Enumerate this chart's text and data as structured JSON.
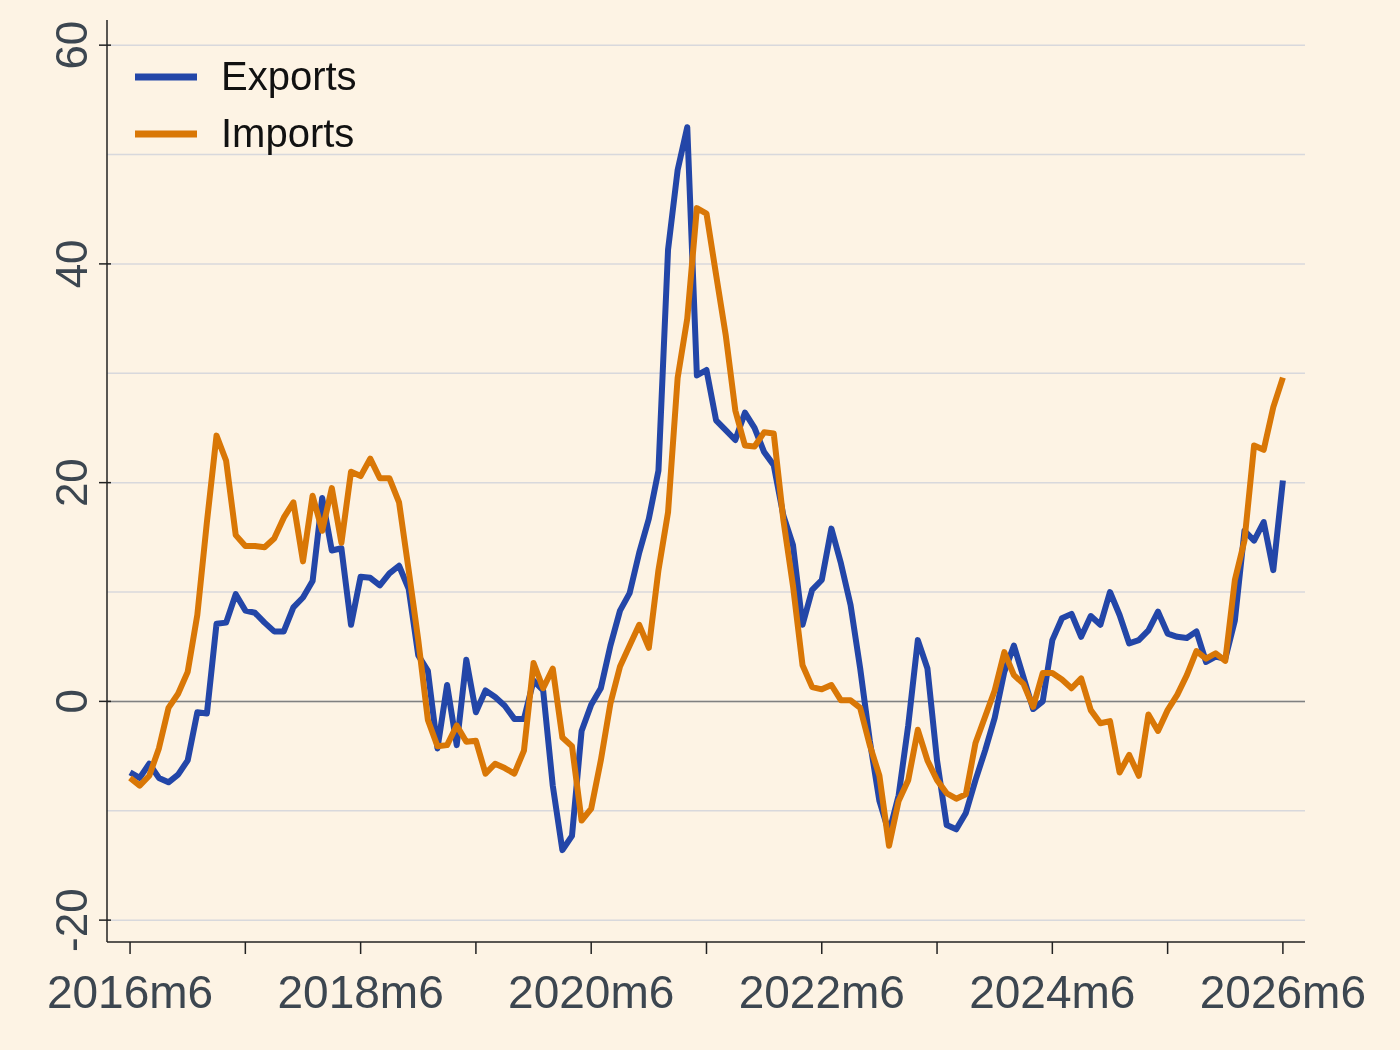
{
  "chart_data": {
    "type": "line",
    "xlim": [
      "2016-03-19",
      "2026-08-10"
    ],
    "ylim": [
      -22,
      62.3
    ],
    "xticks": [
      {
        "value": "2016-06",
        "label": "2016m6"
      },
      {
        "value": "2017-06",
        "label": null
      },
      {
        "value": "2018-06",
        "label": "2018m6"
      },
      {
        "value": "2019-06",
        "label": null
      },
      {
        "value": "2020-06",
        "label": "2020m6"
      },
      {
        "value": "2021-06",
        "label": null
      },
      {
        "value": "2022-06",
        "label": "2022m6"
      },
      {
        "value": "2023-06",
        "label": null
      },
      {
        "value": "2024-06",
        "label": "2024m6"
      },
      {
        "value": "2025-06",
        "label": null
      },
      {
        "value": "2026-06",
        "label": "2026m6"
      }
    ],
    "yticks": [
      -20,
      {
        "value": -10,
        "label": null
      },
      0,
      {
        "value": 10,
        "label": null
      },
      20,
      {
        "value": 30,
        "label": null
      },
      40,
      {
        "value": 50,
        "label": null
      },
      60
    ],
    "grid": "y",
    "legend": "top left",
    "marker": "none",
    "line_style": "solid",
    "ref_lines": [
      {
        "axis": "y",
        "value": 0,
        "color": "#808080"
      }
    ],
    "x": [
      "2016-06",
      "2016-07",
      "2016-08",
      "2016-09",
      "2016-10",
      "2016-11",
      "2016-12",
      "2017-01",
      "2017-02",
      "2017-03",
      "2017-04",
      "2017-05",
      "2017-06",
      "2017-07",
      "2017-08",
      "2017-09",
      "2017-10",
      "2017-11",
      "2017-12",
      "2018-01",
      "2018-02",
      "2018-03",
      "2018-04",
      "2018-05",
      "2018-06",
      "2018-07",
      "2018-08",
      "2018-09",
      "2018-10",
      "2018-11",
      "2018-12",
      "2019-01",
      "2019-02",
      "2019-03",
      "2019-04",
      "2019-05",
      "2019-06",
      "2019-07",
      "2019-08",
      "2019-09",
      "2019-10",
      "2019-11",
      "2019-12",
      "2020-01",
      "2020-02",
      "2020-03",
      "2020-04",
      "2020-05",
      "2020-06",
      "2020-07",
      "2020-08",
      "2020-09",
      "2020-10",
      "2020-11",
      "2020-12",
      "2021-01",
      "2021-02",
      "2021-03",
      "2021-04",
      "2021-05",
      "2021-06",
      "2021-07",
      "2021-08",
      "2021-09",
      "2021-10",
      "2021-11",
      "2021-12",
      "2022-01",
      "2022-02",
      "2022-03",
      "2022-04",
      "2022-05",
      "2022-06",
      "2022-07",
      "2022-08",
      "2022-09",
      "2022-10",
      "2022-11",
      "2022-12",
      "2023-01",
      "2023-02",
      "2023-03",
      "2023-04",
      "2023-05",
      "2023-06",
      "2023-07",
      "2023-08",
      "2023-09",
      "2023-10",
      "2023-11",
      "2023-12",
      "2024-01",
      "2024-02",
      "2024-03",
      "2024-04",
      "2024-05",
      "2024-06",
      "2024-07",
      "2024-08",
      "2024-09",
      "2024-10",
      "2024-11",
      "2024-12",
      "2025-01",
      "2025-02",
      "2025-03",
      "2025-04",
      "2025-05",
      "2025-06",
      "2025-07",
      "2025-08",
      "2025-09",
      "2025-10",
      "2025-11",
      "2025-12",
      "2026-01",
      "2026-02",
      "2026-03",
      "2026-04",
      "2026-05",
      "2026-06"
    ],
    "series": [
      {
        "name": "Exports",
        "color": "#2346a8",
        "values": [
          -6.5,
          -7,
          -5.7,
          -7,
          -7.4,
          -6.7,
          -5.4,
          -1,
          -1.1,
          7.1,
          7.2,
          9.8,
          8.3,
          8.1,
          7.2,
          6.4,
          6.4,
          8.6,
          9.5,
          11,
          18.6,
          13.8,
          14,
          7,
          11.4,
          11.3,
          10.6,
          11.7,
          12.4,
          10.3,
          4.2,
          2.8,
          -4.3,
          1.5,
          -4,
          3.8,
          -1,
          1,
          0.4,
          -0.4,
          -1.6,
          -1.6,
          1.9,
          1,
          -7.7,
          -13.6,
          -12.3,
          -2.7,
          -0.3,
          1.2,
          5.1,
          8.3,
          9.9,
          13.6,
          16.7,
          21.1,
          41.3,
          48.6,
          52.5,
          29.8,
          30.3,
          25.7,
          24.8,
          23.9,
          26.4,
          25,
          22.8,
          21.6,
          17,
          14.3,
          7,
          10.2,
          11.1,
          15.8,
          12.6,
          8.8,
          3,
          -3.6,
          -9.1,
          -12,
          -8.6,
          -2.2,
          5.6,
          3,
          -5.4,
          -11.3,
          -11.7,
          -10.2,
          -7.2,
          -4.5,
          -1.5,
          2.7,
          5.1,
          2.2,
          -0.7,
          0,
          5.6,
          7.6,
          8,
          5.9,
          7.8,
          7,
          10,
          7.9,
          5.3,
          5.6,
          6.5,
          8.2,
          6.2,
          5.9,
          5.8,
          6.4,
          3.6,
          4.1,
          3.9,
          7.4,
          15.6,
          14.7,
          16.4,
          12,
          20.2
        ]
      },
      {
        "name": "Imports",
        "color": "#d97706",
        "values": [
          -7,
          -7.7,
          -6.8,
          -4.3,
          -0.6,
          0.7,
          2.7,
          7.9,
          16.4,
          24.3,
          22,
          15.2,
          14.2,
          14.2,
          14.1,
          14.9,
          16.8,
          18.2,
          12.8,
          18.8,
          15.6,
          19.5,
          14.5,
          21,
          20.6,
          22.2,
          20.4,
          20.4,
          18.2,
          12,
          5.6,
          -1.7,
          -4.1,
          -4,
          -2.2,
          -3.7,
          -3.6,
          -6.6,
          -5.7,
          -6.1,
          -6.6,
          -4.5,
          3.5,
          1.2,
          3,
          -3.3,
          -4.1,
          -10.9,
          -9.8,
          -5.4,
          -0.2,
          3.2,
          5.1,
          7,
          4.9,
          12,
          17.3,
          29.6,
          35,
          45.1,
          44.6,
          39,
          33.5,
          26.6,
          23.4,
          23.3,
          24.6,
          24.5,
          16.6,
          10.6,
          3.3,
          1.3,
          1.1,
          1.5,
          0.1,
          0.1,
          -0.6,
          -4,
          -6.8,
          -13.2,
          -9.1,
          -7.2,
          -2.6,
          -5.4,
          -7.2,
          -8.4,
          -8.9,
          -8.5,
          -3.8,
          -1.4,
          1,
          4.5,
          2.4,
          1.6,
          -0.5,
          2.6,
          2.6,
          2,
          1.2,
          2.1,
          -0.8,
          -2,
          -1.8,
          -6.5,
          -4.9,
          -6.8,
          -1.2,
          -2.7,
          -0.8,
          0.6,
          2.4,
          4.6,
          3.9,
          4.4,
          3.7,
          11.1,
          14.7,
          23.4,
          23,
          26.9,
          29.6
        ]
      }
    ]
  }
}
